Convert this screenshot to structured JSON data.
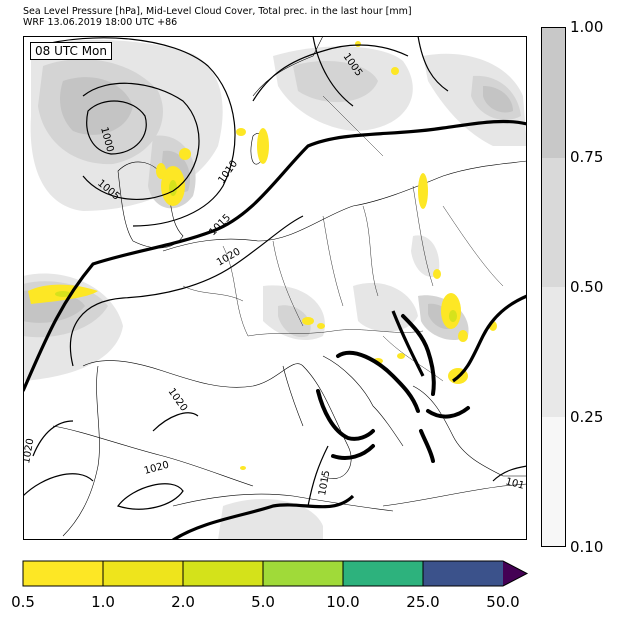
{
  "header": {
    "title_line1": "Sea Level Pressure [hPa], Mid-Level Cloud Cover, Total prec. in the last hour [mm]",
    "title_line2": "WRF 13.06.2019 18:00 UTC +86"
  },
  "map": {
    "time_label": "08 UTC Mon",
    "isobar_labels": [
      "1000",
      "1005",
      "1005",
      "1010",
      "1015",
      "1020",
      "1020",
      "1020",
      "1020",
      "1015",
      "101"
    ]
  },
  "cloud_colorbar": {
    "ticks": [
      "1.00",
      "0.75",
      "0.50",
      "0.25",
      "0.10"
    ],
    "colors": [
      "#f7f7f7",
      "#e8e8e8",
      "#d9d9d9",
      "#c8c8c8"
    ]
  },
  "precip_colorbar": {
    "ticks": [
      "0.5",
      "1.0",
      "2.0",
      "5.0",
      "10.0",
      "25.0",
      "50.0"
    ],
    "colors": [
      "#fde725",
      "#eee41c",
      "#d4e21a",
      "#a0da39",
      "#2db27d",
      "#3b528b",
      "#440154"
    ]
  },
  "colors": {
    "cloud_light": "#e6e6e6",
    "cloud_mid": "#d4d4d4",
    "cloud_dark": "#c4c4c4",
    "precip": "#fde725",
    "precip_strong": "#d6e21c",
    "isobar": "#000000"
  }
}
